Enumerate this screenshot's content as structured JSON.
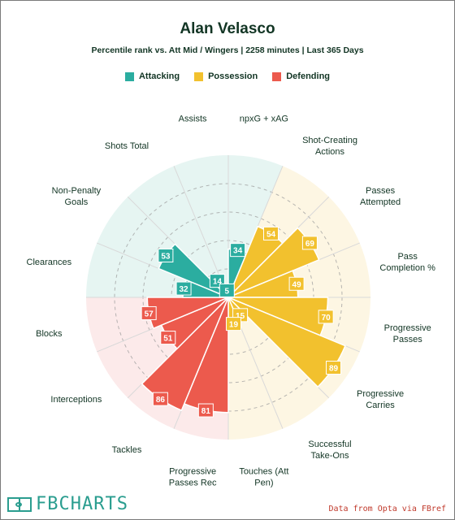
{
  "title": "Alan Velasco",
  "subtitle": "Percentile rank vs. Att Mid / Wingers | 2258 minutes | Last 365 Days",
  "legend": [
    {
      "label": "Attacking",
      "color": "#2bada0"
    },
    {
      "label": "Possession",
      "color": "#f2c12e"
    },
    {
      "label": "Defending",
      "color": "#ec5a4d"
    }
  ],
  "colors": {
    "attacking_bg": "#e6f5f2",
    "possession_bg": "#fdf6e3",
    "defending_bg": "#fceaea",
    "attacking_fill": "#2bada0",
    "possession_fill": "#f2c12e",
    "defending_fill": "#ec5a4d",
    "text": "#123524"
  },
  "chart_data": {
    "type": "polar-bar",
    "title": "Alan Velasco",
    "subtitle": "Percentile rank vs. Att Mid / Wingers | 2258 minutes | Last 365 Days",
    "rlim": [
      0,
      100
    ],
    "grid": true,
    "legend_position": "top",
    "metrics": [
      {
        "label": "npxG + xAG",
        "value": 34,
        "group": "Attacking"
      },
      {
        "label": "Shot-Creating Actions",
        "value": 54,
        "group": "Possession"
      },
      {
        "label": "Passes Attempted",
        "value": 69,
        "group": "Possession"
      },
      {
        "label": "Pass Completion %",
        "value": 49,
        "group": "Possession"
      },
      {
        "label": "Progressive Passes",
        "value": 70,
        "group": "Possession"
      },
      {
        "label": "Progressive Carries",
        "value": 89,
        "group": "Possession"
      },
      {
        "label": "Successful Take-Ons",
        "value": 15,
        "group": "Possession"
      },
      {
        "label": "Touches (Att Pen)",
        "value": 19,
        "group": "Possession"
      },
      {
        "label": "Progressive Passes Rec",
        "value": 81,
        "group": "Defending"
      },
      {
        "label": "Tackles",
        "value": 86,
        "group": "Defending"
      },
      {
        "label": "Interceptions",
        "value": 51,
        "group": "Defending"
      },
      {
        "label": "Blocks",
        "value": 57,
        "group": "Defending"
      },
      {
        "label": "Clearances",
        "value": 32,
        "group": "Attacking"
      },
      {
        "label": "Non-Penalty Goals",
        "value": 53,
        "group": "Attacking"
      },
      {
        "label": "Shots Total",
        "value": 14,
        "group": "Attacking"
      },
      {
        "label": "Assists",
        "value": 5,
        "group": "Attacking"
      }
    ],
    "label_lines": [
      [
        "npxG + xAG"
      ],
      [
        "Shot-Creating",
        "Actions"
      ],
      [
        "Passes",
        "Attempted"
      ],
      [
        "Pass",
        "Completion %"
      ],
      [
        "Progressive",
        "Passes"
      ],
      [
        "Progressive",
        "Carries"
      ],
      [
        "Successful",
        "Take-Ons"
      ],
      [
        "Touches (Att",
        "Pen)"
      ],
      [
        "Progressive",
        "Passes Rec"
      ],
      [
        "Tackles"
      ],
      [
        "Interceptions"
      ],
      [
        "Blocks"
      ],
      [
        "Clearances"
      ],
      [
        "Non-Penalty",
        "Goals"
      ],
      [
        "Shots Total"
      ],
      [
        "Assists"
      ]
    ]
  },
  "footer": {
    "brand": "FBCHARTS",
    "source": "Data from Opta via FBref"
  }
}
